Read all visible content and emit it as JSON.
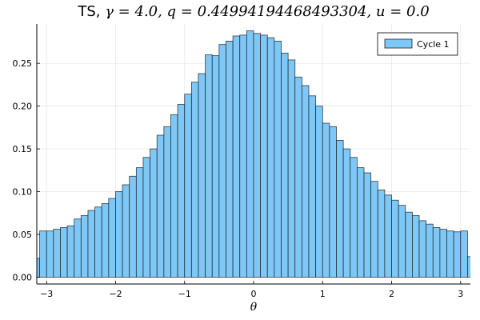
{
  "chart_data": {
    "type": "bar",
    "title_prefix": "TS, ",
    "title_math": "γ = 4.0, q = 0.44994194468493304, u = 0.0",
    "xlabel": "θ",
    "ylabel": "",
    "xlim": [
      -3.14159,
      3.14159
    ],
    "ylim": [
      -0.008,
      0.296
    ],
    "grid": true,
    "legend_position": "top-right",
    "xticks": [
      -3,
      -2,
      -1,
      0,
      1,
      2,
      3
    ],
    "xtick_labels": [
      "−3",
      "−2",
      "−1",
      "0",
      "1",
      "2",
      "3"
    ],
    "yticks": [
      0.0,
      0.05,
      0.1,
      0.15,
      0.2,
      0.25
    ],
    "ytick_labels": [
      "0.00",
      "0.05",
      "0.10",
      "0.15",
      "0.20",
      "0.25"
    ],
    "bin_width": 0.1,
    "series": [
      {
        "name": "Cycle 1",
        "color": "#7ec8f7",
        "edge_color": "#1f1f1f",
        "bin_starts": [
          -3.2,
          -3.1,
          -3.0,
          -2.9,
          -2.8,
          -2.7,
          -2.6,
          -2.5,
          -2.4,
          -2.3,
          -2.2,
          -2.1,
          -2.0,
          -1.9,
          -1.8,
          -1.7,
          -1.6,
          -1.5,
          -1.4,
          -1.3,
          -1.2,
          -1.1,
          -1.0,
          -0.9,
          -0.8,
          -0.7,
          -0.6,
          -0.5,
          -0.4,
          -0.3,
          -0.2,
          -0.1,
          0.0,
          0.1,
          0.2,
          0.3,
          0.4,
          0.5,
          0.6,
          0.7,
          0.8,
          0.9,
          1.0,
          1.1,
          1.2,
          1.3,
          1.4,
          1.5,
          1.6,
          1.7,
          1.8,
          1.9,
          2.0,
          2.1,
          2.2,
          2.3,
          2.4,
          2.5,
          2.6,
          2.7,
          2.8,
          2.9,
          3.0,
          3.1
        ],
        "values": [
          0.022,
          0.054,
          0.054,
          0.056,
          0.058,
          0.06,
          0.068,
          0.072,
          0.078,
          0.082,
          0.086,
          0.092,
          0.1,
          0.108,
          0.118,
          0.128,
          0.14,
          0.15,
          0.166,
          0.176,
          0.19,
          0.202,
          0.214,
          0.228,
          0.238,
          0.26,
          0.259,
          0.272,
          0.276,
          0.282,
          0.283,
          0.288,
          0.285,
          0.283,
          0.28,
          0.276,
          0.262,
          0.254,
          0.234,
          0.224,
          0.212,
          0.2,
          0.18,
          0.176,
          0.16,
          0.15,
          0.14,
          0.128,
          0.122,
          0.112,
          0.102,
          0.096,
          0.09,
          0.084,
          0.076,
          0.072,
          0.066,
          0.062,
          0.058,
          0.056,
          0.054,
          0.053,
          0.054,
          0.024
        ]
      }
    ]
  }
}
